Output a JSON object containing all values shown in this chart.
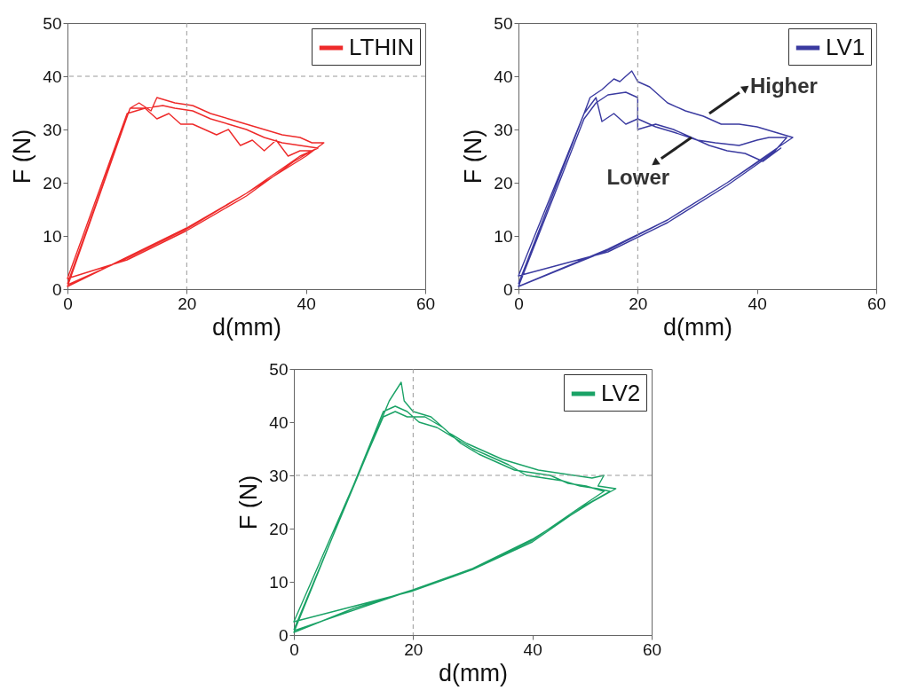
{
  "chart_data": [
    {
      "type": "line",
      "xlabel": "d(mm)",
      "ylabel": "F (N)",
      "xlim": [
        0,
        60
      ],
      "xticks": [
        0,
        20,
        40,
        60
      ],
      "ylim": [
        0,
        50
      ],
      "yticks": [
        0,
        10,
        20,
        30,
        40,
        50
      ],
      "legend": "top right",
      "ref_lines": [
        {
          "axis": "x",
          "value": 20,
          "line_style": "dashed",
          "color": "#999999"
        },
        {
          "axis": "y",
          "value": 40,
          "line_style": "dashed",
          "color": "#999999"
        }
      ],
      "series": [
        {
          "name": "LTHIN",
          "color": "#ee2a2a",
          "x": [
            0,
            10.5,
            12,
            14,
            15,
            18,
            21,
            24,
            27,
            30,
            33,
            36,
            39,
            41,
            43,
            40,
            30,
            20,
            10,
            0,
            10.5,
            13,
            15,
            17,
            19,
            21,
            23,
            25,
            27,
            29,
            31,
            33,
            35,
            37,
            39,
            41,
            38,
            30,
            20,
            10,
            0,
            10,
            13,
            16,
            18,
            21,
            24,
            27,
            30,
            33,
            36,
            39,
            42,
            39,
            30,
            20,
            10,
            0
          ],
          "values": [
            1,
            34,
            35,
            33.5,
            36,
            35,
            34.5,
            33,
            32,
            31,
            30,
            29,
            28.5,
            27.5,
            27.5,
            25,
            18,
            11.5,
            6,
            0.5,
            34,
            34,
            32,
            33,
            31,
            31,
            30,
            29,
            30,
            27,
            28,
            26,
            28,
            25,
            26,
            26,
            24,
            17.5,
            11,
            5.5,
            2,
            33,
            34,
            34.5,
            34,
            33.5,
            32,
            31,
            30,
            28.5,
            27.5,
            27,
            26.5,
            25,
            18,
            11.3,
            5.8,
            0.8
          ]
        }
      ]
    },
    {
      "type": "line",
      "xlabel": "d(mm)",
      "ylabel": "F (N)",
      "xlim": [
        0,
        60
      ],
      "xticks": [
        0,
        20,
        40,
        60
      ],
      "ylim": [
        0,
        50
      ],
      "yticks": [
        0,
        10,
        20,
        30,
        40,
        50
      ],
      "legend": "top right",
      "ref_lines": [
        {
          "axis": "x",
          "value": 20,
          "line_style": "dashed",
          "color": "#999999"
        }
      ],
      "annotations": [
        {
          "text": "Higher",
          "x": 32,
          "y": 33
        },
        {
          "text": "Lower",
          "x": 29,
          "y": 28.5
        }
      ],
      "series": [
        {
          "name": "LV1",
          "color": "#3a3aa0",
          "x": [
            0,
            11,
            12,
            14,
            16,
            17,
            19,
            20,
            22,
            25,
            28,
            31,
            34,
            37,
            40,
            43,
            46,
            44,
            35,
            25,
            15,
            0,
            11,
            13,
            15,
            18,
            20,
            20,
            23,
            26,
            29,
            32,
            35,
            38,
            41,
            44,
            42,
            35,
            25,
            15,
            0,
            11,
            13,
            14,
            16,
            18,
            20,
            23,
            26,
            30,
            33,
            37,
            40,
            42,
            45,
            43,
            35,
            25,
            15,
            0
          ],
          "values": [
            1,
            33,
            36,
            37.5,
            39.5,
            39,
            41,
            39,
            38,
            35,
            33.5,
            32.5,
            31,
            31,
            30.5,
            29.5,
            28.5,
            27,
            20,
            13,
            7.5,
            0.5,
            32,
            35,
            36.5,
            37,
            36,
            30,
            31,
            30,
            28.5,
            27,
            26,
            25.5,
            24,
            26.5,
            25,
            19.5,
            12.5,
            7,
            2.5,
            33,
            36,
            31.5,
            33,
            31,
            32,
            30.5,
            29.5,
            28,
            27.5,
            27,
            28,
            28.5,
            28.5,
            26,
            20,
            13,
            7.3,
            0.5
          ]
        }
      ]
    },
    {
      "type": "line",
      "xlabel": "d(mm)",
      "ylabel": "F (N)",
      "xlim": [
        0,
        60
      ],
      "xticks": [
        0,
        20,
        40,
        60
      ],
      "ylim": [
        0,
        50
      ],
      "yticks": [
        0,
        10,
        20,
        30,
        40,
        50
      ],
      "legend": "top right",
      "ref_lines": [
        {
          "axis": "x",
          "value": 20,
          "line_style": "dashed",
          "color": "#999999"
        },
        {
          "axis": "y",
          "value": 30,
          "line_style": "dashed",
          "color": "#999999"
        }
      ],
      "series": [
        {
          "name": "LV2",
          "color": "#1aa266",
          "x": [
            0,
            16,
            18,
            18.5,
            20,
            23,
            26,
            29,
            32,
            35,
            38,
            41,
            44,
            47,
            50,
            52,
            51,
            54,
            50,
            40,
            30,
            20,
            10,
            0,
            15,
            17,
            19,
            21,
            24,
            27,
            30,
            33,
            36,
            39,
            42,
            45,
            48,
            51,
            53,
            49,
            40,
            30,
            20,
            0,
            15,
            17,
            19,
            22,
            25,
            28,
            31,
            34,
            37,
            40,
            43,
            46,
            49,
            52,
            48,
            40,
            30,
            20,
            0
          ],
          "values": [
            1,
            44,
            47.5,
            44,
            42,
            41,
            38,
            36,
            34.5,
            33,
            32,
            31,
            30.5,
            30,
            29.5,
            30,
            28,
            27.5,
            25,
            18,
            12.5,
            8.5,
            5,
            0.5,
            42,
            43,
            42,
            40,
            39,
            37,
            35,
            33.5,
            32,
            30,
            29.5,
            29,
            28,
            27.5,
            27,
            24.5,
            17.5,
            12.3,
            8.3,
            2.5,
            41,
            42,
            41,
            41,
            39,
            36,
            34,
            32.5,
            31,
            30.5,
            30,
            28.5,
            28,
            27,
            24,
            17.8,
            12.5,
            8.5,
            0.8
          ]
        }
      ]
    }
  ]
}
